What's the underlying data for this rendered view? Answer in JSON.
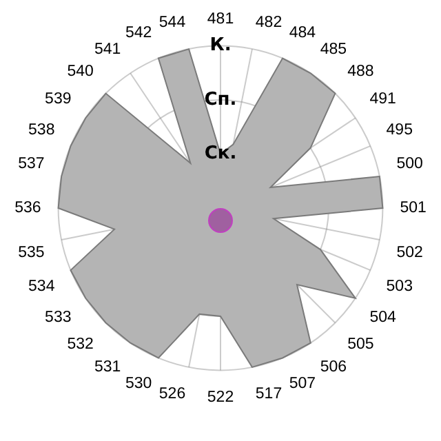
{
  "chart_data": {
    "type": "radar",
    "categories": [
      "481",
      "482",
      "484",
      "485",
      "488",
      "491",
      "495",
      "500",
      "501",
      "502",
      "503",
      "504",
      "505",
      "506",
      "507",
      "517",
      "522",
      "526",
      "530",
      "531",
      "532",
      "533",
      "534",
      "535",
      "536",
      "537",
      "538",
      "539",
      "540",
      "541",
      "542",
      "544"
    ],
    "series": [
      {
        "color": "#b4b4b4",
        "values": [
          1,
          1.2,
          3,
          3,
          3,
          2,
          1,
          3,
          3,
          1,
          2,
          3,
          2,
          3,
          3,
          3,
          2,
          2,
          3,
          3,
          3,
          3,
          3,
          2,
          3,
          3,
          3,
          3,
          3,
          1,
          3,
          3
        ]
      }
    ],
    "ylim": [
      0,
      3
    ],
    "yticks": [
      {
        "value": 1,
        "label": "Ск."
      },
      {
        "value": 2,
        "label": "Сп."
      },
      {
        "value": 3,
        "label": "К."
      }
    ],
    "grid": true,
    "legend": false,
    "marker": "none"
  }
}
